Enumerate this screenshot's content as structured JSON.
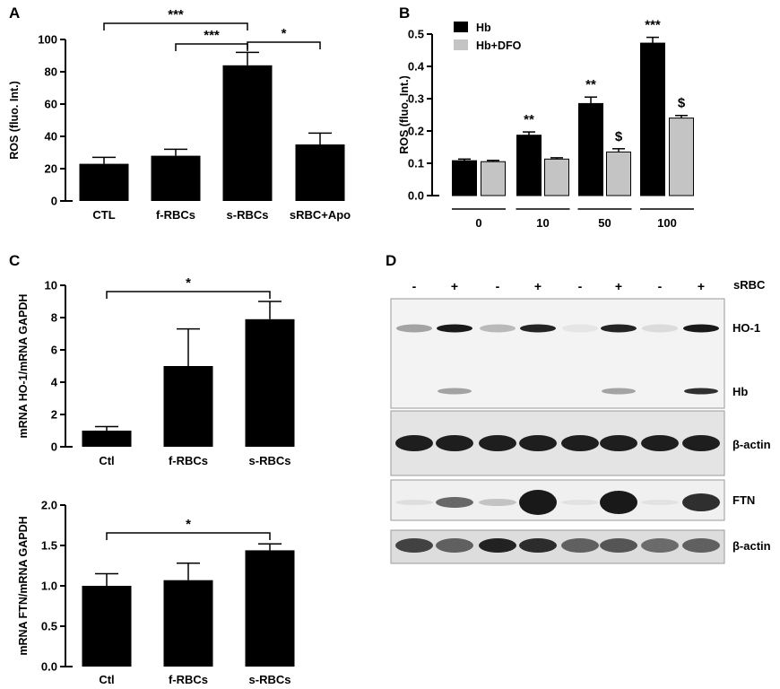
{
  "chart_data": [
    {
      "panel": "A",
      "type": "bar",
      "ylabel": "ROS (fluo. Int.)",
      "ylim": [
        0,
        100
      ],
      "yticks": [
        "0",
        "20",
        "40",
        "60",
        "80",
        "100"
      ],
      "categories": [
        "CTL",
        "f-RBCs",
        "s-RBCs",
        "sRBC+Apo"
      ],
      "values": [
        23,
        28,
        84,
        35
      ],
      "errors": [
        4,
        4,
        8,
        7
      ],
      "bar_color": "#000000",
      "significance": [
        {
          "from": 0,
          "to": 2,
          "label": "***"
        },
        {
          "from": 1,
          "to": 2,
          "label": "***"
        },
        {
          "from": 2,
          "to": 3,
          "label": "*"
        }
      ]
    },
    {
      "panel": "B",
      "type": "bar",
      "ylabel": "ROS (fluo. Int.)",
      "ylim": [
        0,
        0.5
      ],
      "yticks": [
        "0.0",
        "0.1",
        "0.2",
        "0.3",
        "0.4",
        "0.5"
      ],
      "categories": [
        "0",
        "10",
        "50",
        "100"
      ],
      "series": [
        {
          "name": "Hb",
          "color": "#000000",
          "values": [
            0.108,
            0.187,
            0.285,
            0.472
          ],
          "errors": [
            0.005,
            0.01,
            0.02,
            0.018
          ],
          "annotations": [
            "",
            "**",
            "**",
            "***"
          ]
        },
        {
          "name": "Hb+DFO",
          "color": "#c4c4c4",
          "values": [
            0.105,
            0.113,
            0.135,
            0.24
          ],
          "errors": [
            0.004,
            0.004,
            0.01,
            0.008
          ],
          "annotations": [
            "",
            "",
            "$",
            "$"
          ]
        }
      ],
      "legend_position": "top-left"
    },
    {
      "panel": "C",
      "type": "bar",
      "ylabel": "mRNA HO-1/mRNA GAPDH",
      "ylim": [
        0,
        10
      ],
      "yticks": [
        "0",
        "2",
        "4",
        "6",
        "8",
        "10"
      ],
      "categories": [
        "Ctl",
        "f-RBCs",
        "s-RBCs"
      ],
      "values": [
        1.0,
        5.0,
        7.9
      ],
      "errors": [
        0.25,
        2.3,
        1.1
      ],
      "significance": [
        {
          "from": 0,
          "to": 2,
          "label": "*"
        }
      ]
    },
    {
      "panel": "C",
      "type": "bar",
      "ylabel": "mRNA FTN/mRNA GAPDH",
      "ylim": [
        0,
        2
      ],
      "yticks": [
        "0.0",
        "0.5",
        "1.0",
        "1.5",
        "2.0"
      ],
      "categories": [
        "Ctl",
        "f-RBCs",
        "s-RBCs"
      ],
      "values": [
        1.0,
        1.07,
        1.44
      ],
      "errors": [
        0.15,
        0.21,
        0.08
      ],
      "significance": [
        {
          "from": 0,
          "to": 2,
          "label": "*"
        }
      ]
    }
  ],
  "panel_D": {
    "label": "D",
    "lane_signs": [
      "-",
      "+",
      "-",
      "+",
      "-",
      "+",
      "-",
      "+"
    ],
    "condition_label": "sRBC",
    "blot_labels": {
      "ho1": "HO-1",
      "hb": "Hb",
      "actin1": "β-actin",
      "ftn": "FTN",
      "actin2": "β-actin"
    }
  }
}
